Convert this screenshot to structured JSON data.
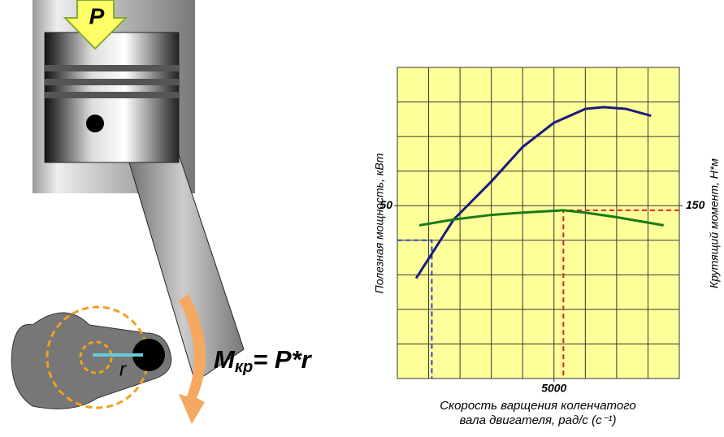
{
  "diagram": {
    "force": "P",
    "torque_symbol": "M",
    "torque_subscript": "кр",
    "formula_rhs": "= P*r",
    "radius": "r"
  },
  "chart_data": {
    "type": "line",
    "x_label": [
      "Скорость варщения коленчатого",
      "вала двигателя, рад/с (с⁻¹)"
    ],
    "y_label": "Полезная мощность, кВт",
    "y2_label": "Крутящий момент, Н*м",
    "xlim": [
      0,
      9000
    ],
    "xticks": [
      5000
    ],
    "ylim": [
      0,
      90
    ],
    "yticks": [
      50
    ],
    "y2lim": [
      0,
      270
    ],
    "y2ticks": [
      150
    ],
    "grid": true,
    "background": "#ffff99",
    "series": [
      {
        "color": "#1a1a80",
        "x": [
          600,
          1800,
          3000,
          4000,
          5000,
          6000,
          6600,
          7300,
          8100
        ],
        "values": [
          29,
          46,
          57,
          67,
          74,
          78,
          78.5,
          78,
          76
        ]
      },
      {
        "color": "#1a7a1a",
        "axis": "y2",
        "x": [
          700,
          1800,
          3000,
          4000,
          5300,
          6000,
          7000,
          8500
        ],
        "values": [
          133,
          138,
          142,
          144,
          146,
          144,
          140,
          133
        ]
      }
    ],
    "guides": [
      {
        "color": "#3344cc",
        "x": 1100,
        "y": 40
      },
      {
        "color": "#dd2222",
        "x": 5300,
        "y": 146,
        "axis": "y2"
      }
    ]
  }
}
